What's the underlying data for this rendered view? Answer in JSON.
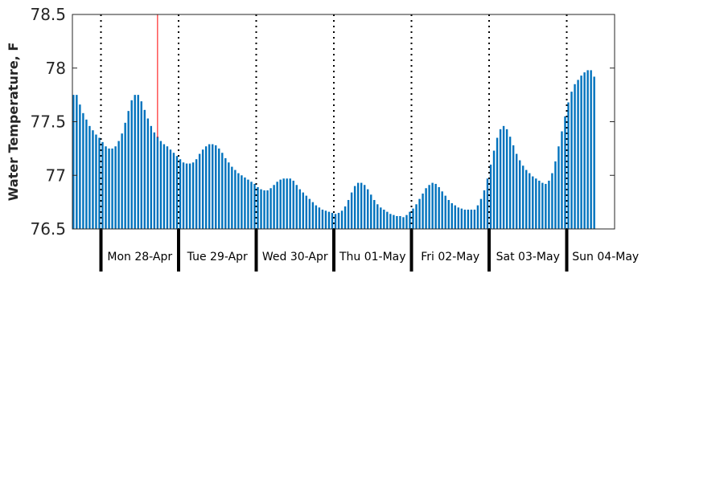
{
  "chart_data": {
    "type": "bar",
    "title": "",
    "xlabel": "",
    "ylabel": "Water Temperature, F",
    "ylim": [
      76.5,
      78.5
    ],
    "yticks": [
      76.5,
      77,
      77.5,
      78,
      78.5
    ],
    "ytick_labels": [
      "76.5",
      "77",
      "77.5",
      "78",
      "78.5"
    ],
    "grid": false,
    "legend": "none",
    "hours_per_sample": 1,
    "start_offset_hours_before_first_divider": 9,
    "day_labels": [
      "Mon 28-Apr",
      "Tue 29-Apr",
      "Wed 30-Apr",
      "Thu 01-May",
      "Fri 02-May",
      "Sat 03-May",
      "Sun 04-May"
    ],
    "current_time_marker_hours_after_first_divider": 17.5,
    "values": [
      77.75,
      77.75,
      77.66,
      77.58,
      77.52,
      77.46,
      77.42,
      77.38,
      77.35,
      77.31,
      77.27,
      77.25,
      77.25,
      77.27,
      77.32,
      77.39,
      77.49,
      77.6,
      77.7,
      77.75,
      77.75,
      77.69,
      77.61,
      77.53,
      77.46,
      77.4,
      77.36,
      77.32,
      77.29,
      77.27,
      77.24,
      77.21,
      77.18,
      77.15,
      77.12,
      77.11,
      77.11,
      77.12,
      77.15,
      77.2,
      77.24,
      77.27,
      77.29,
      77.29,
      77.28,
      77.25,
      77.21,
      77.16,
      77.12,
      77.08,
      77.05,
      77.02,
      77.0,
      76.98,
      76.96,
      76.94,
      76.92,
      76.89,
      76.87,
      76.86,
      76.86,
      76.88,
      76.91,
      76.94,
      76.96,
      76.97,
      76.97,
      76.97,
      76.95,
      76.91,
      76.87,
      76.84,
      76.81,
      76.78,
      76.75,
      76.72,
      76.7,
      76.68,
      76.67,
      76.66,
      76.65,
      76.64,
      76.65,
      76.67,
      76.71,
      76.77,
      76.84,
      76.9,
      76.93,
      76.93,
      76.91,
      76.87,
      76.82,
      76.77,
      76.73,
      76.7,
      76.68,
      76.66,
      76.64,
      76.63,
      76.62,
      76.62,
      76.61,
      76.63,
      76.66,
      76.69,
      76.73,
      76.78,
      76.83,
      76.88,
      76.91,
      76.93,
      76.92,
      76.89,
      76.85,
      76.81,
      76.77,
      76.74,
      76.72,
      76.7,
      76.69,
      76.68,
      76.68,
      76.68,
      76.68,
      76.72,
      76.78,
      76.86,
      76.97,
      77.1,
      77.23,
      77.35,
      77.43,
      77.46,
      77.43,
      77.36,
      77.28,
      77.2,
      77.14,
      77.09,
      77.05,
      77.02,
      76.99,
      76.97,
      76.95,
      76.93,
      76.92,
      76.95,
      77.02,
      77.13,
      77.27,
      77.41,
      77.55,
      77.68,
      77.78,
      77.85,
      77.89,
      77.93,
      77.96,
      77.98,
      77.98,
      77.92
    ]
  }
}
